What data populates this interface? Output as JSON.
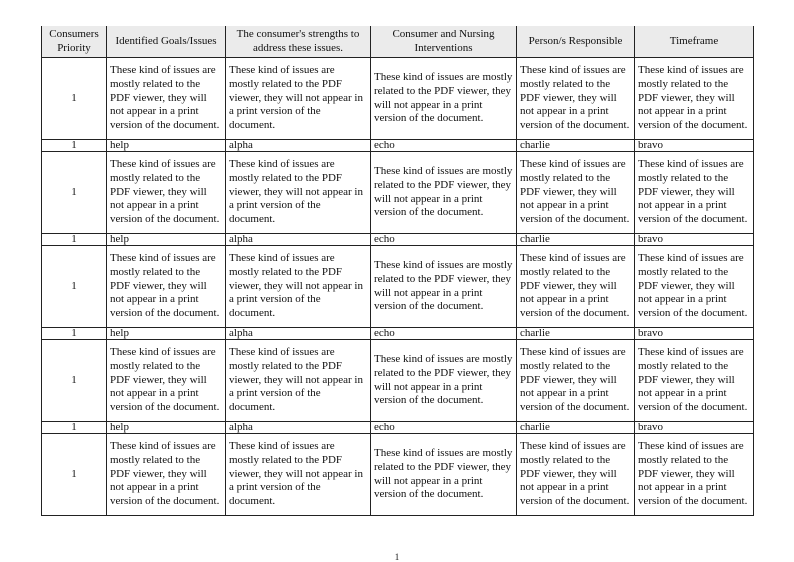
{
  "table": {
    "headers": [
      "Consumers Priority",
      "Identified Goals/Issues",
      "The consumer's strengths to address these issues.",
      "Consumer and Nursing Interventions",
      "Person/s Responsible",
      "Timeframe"
    ],
    "rows": [
      {
        "type": "big",
        "cells": [
          "1",
          "These kind of issues are mostly related to the PDF viewer, they will not appear in a print version of the document.",
          "These kind of issues are mostly related to the PDF viewer, they will not appear in a print version of the document.",
          "These kind of issues are mostly related to the PDF viewer, they will not appear in a print version of the document.",
          "These kind of issues are mostly related to the PDF viewer, they will not appear in a print version of the document.",
          "These kind of issues are mostly related to the PDF viewer, they will not appear in a print version of the document."
        ]
      },
      {
        "type": "small",
        "cells": [
          "1",
          "help",
          "alpha",
          "echo",
          "charlie",
          "bravo"
        ]
      },
      {
        "type": "big",
        "cells": [
          "1",
          "These kind of issues are mostly related to the PDF viewer, they will not appear in a print version of the document.",
          "These kind of issues are mostly related to the PDF viewer, they will not appear in a print version of the document.",
          "These kind of issues are mostly related to the PDF viewer, they will not appear in a print version of the document.",
          "These kind of issues are mostly related to the PDF viewer, they will not appear in a print version of the document.",
          "These kind of issues are mostly related to the PDF viewer, they will not appear in a print version of the document."
        ]
      },
      {
        "type": "small",
        "cells": [
          "1",
          "help",
          "alpha",
          "echo",
          "charlie",
          "bravo"
        ]
      },
      {
        "type": "big",
        "cells": [
          "1",
          "These kind of issues are mostly related to the PDF viewer, they will not appear in a print version of the document.",
          "These kind of issues are mostly related to the PDF viewer, they will not appear in a print version of the document.",
          "These kind of issues are mostly related to the PDF viewer, they will not appear in a print version of the document.",
          "These kind of issues are mostly related to the PDF viewer, they will not appear in a print version of the document.",
          "These kind of issues are mostly related to the PDF viewer, they will not appear in a print version of the document."
        ]
      },
      {
        "type": "small",
        "cells": [
          "1",
          "help",
          "alpha",
          "echo",
          "charlie",
          "bravo"
        ]
      },
      {
        "type": "big",
        "cells": [
          "1",
          "These kind of issues are mostly related to the PDF viewer, they will not appear in a print version of the document.",
          "These kind of issues are mostly related to the PDF viewer, they will not appear in a print version of the document.",
          "These kind of issues are mostly related to the PDF viewer, they will not appear in a print version of the document.",
          "These kind of issues are mostly related to the PDF viewer, they will not appear in a print version of the document.",
          "These kind of issues are mostly related to the PDF viewer, they will not appear in a print version of the document."
        ]
      },
      {
        "type": "small",
        "cells": [
          "1",
          "help",
          "alpha",
          "echo",
          "charlie",
          "bravo"
        ]
      },
      {
        "type": "big",
        "cells": [
          "1",
          "These kind of issues are mostly related to the PDF viewer, they will not appear in a print version of the document.",
          "These kind of issues are mostly related to the PDF viewer, they will not appear in a print version of the document.",
          "These kind of issues are mostly related to the PDF viewer, they will not appear in a print version of the document.",
          "These kind of issues are mostly related to the PDF viewer, they will not appear in a print version of the document.",
          "These kind of issues are mostly related to the PDF viewer, they will not appear in a print version of the document."
        ]
      }
    ]
  },
  "page_number": "1",
  "colors": {
    "header_bg": "#ebebeb",
    "border": "#222222"
  }
}
